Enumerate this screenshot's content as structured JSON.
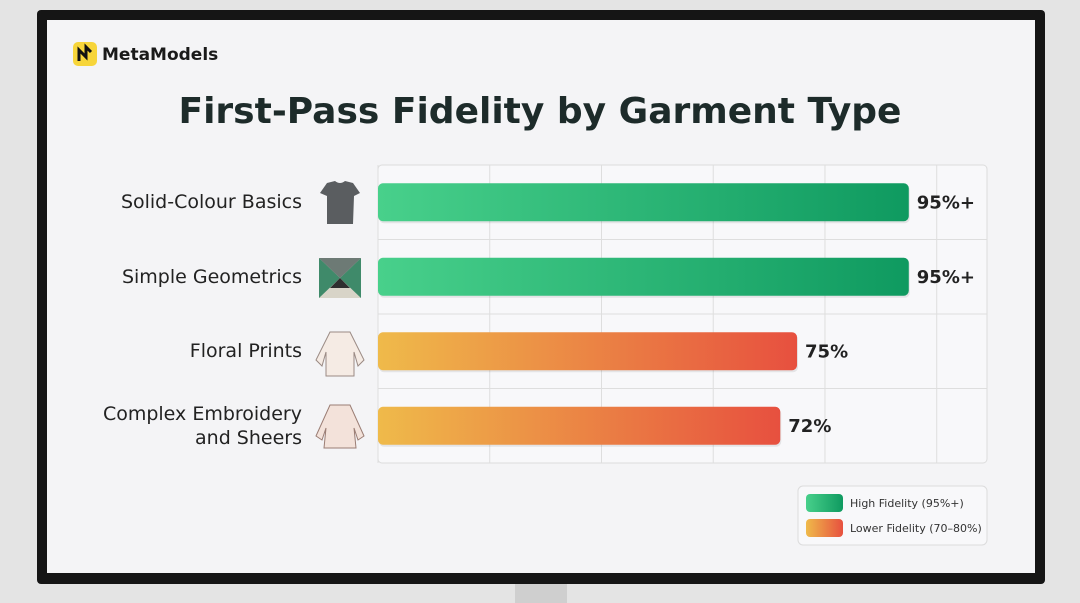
{
  "header": {
    "brand": "MetaModels"
  },
  "chart_data": {
    "type": "hbar",
    "title": "First-Pass Fidelity by Garment Type",
    "categories": [
      "Solid-Colour Basics",
      "Simple Geometrics",
      "Floral Prints",
      "Complex Embroidery and Sheers"
    ],
    "series": [
      {
        "name": "High Fidelity (95%+)",
        "colors": [
          "#48d08b",
          "#0f9a60"
        ],
        "values": [
          95,
          95,
          null,
          null
        ],
        "value_labels": [
          "95%+",
          "95%+",
          null,
          null
        ]
      },
      {
        "name": "Lower Fidelity (70–80%)",
        "colors": [
          "#efba4a",
          "#e7503f"
        ],
        "values": [
          null,
          null,
          75,
          72
        ],
        "value_labels": [
          null,
          null,
          "75%",
          "72%"
        ]
      }
    ],
    "xlim": [
      0,
      109
    ],
    "xticks": [
      0,
      20,
      40,
      60,
      80,
      100
    ],
    "grid": true,
    "legend": "bottom-right"
  }
}
